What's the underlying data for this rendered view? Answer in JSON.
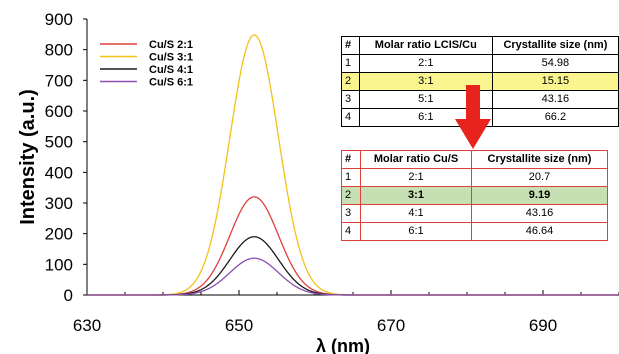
{
  "chart_data": {
    "type": "line",
    "xlabel": "λ (nm)",
    "ylabel": "Intensity (a.u.)",
    "xlim": [
      630,
      700
    ],
    "ylim": [
      0,
      900
    ],
    "xticks": [
      630,
      650,
      670,
      690
    ],
    "yticks": [
      0,
      100,
      200,
      300,
      400,
      500,
      600,
      700,
      800,
      900
    ],
    "legend_position": "top-left",
    "peak_x": 652,
    "series": [
      {
        "name": "Cu/S 2:1",
        "color": "#e0403c",
        "peak": 320,
        "sigma": 3.2
      },
      {
        "name": "Cu/S 3:1",
        "color": "#f2c21a",
        "peak": 848,
        "sigma": 3.2
      },
      {
        "name": "Cu/S 4:1",
        "color": "#1a1a1a",
        "peak": 190,
        "sigma": 3.2
      },
      {
        "name": "Cu/S 6:1",
        "color": "#8a4fb0",
        "peak": 120,
        "sigma": 3.2
      }
    ]
  },
  "table_top": {
    "headers": [
      "#",
      "Molar ratio LCIS/Cu",
      "Crystallite size (nm)"
    ],
    "rows": [
      [
        "1",
        "2:1",
        "54.98"
      ],
      [
        "2",
        "3:1",
        "15.15"
      ],
      [
        "3",
        "5:1",
        "43.16"
      ],
      [
        "4",
        "6:1",
        "66.2"
      ]
    ],
    "highlight_color": "#fbf58f"
  },
  "table_bottom": {
    "headers": [
      "#",
      "Molar ratio Cu/S",
      "Crystallite size (nm)"
    ],
    "rows": [
      [
        "1",
        "2:1",
        "20.7"
      ],
      [
        "2",
        "3:1",
        "9.19"
      ],
      [
        "3",
        "4:1",
        "43.16"
      ],
      [
        "4",
        "6:1",
        "46.64"
      ]
    ],
    "highlight_color": "#c6e0b4"
  },
  "arrow_color": "#e8231e"
}
